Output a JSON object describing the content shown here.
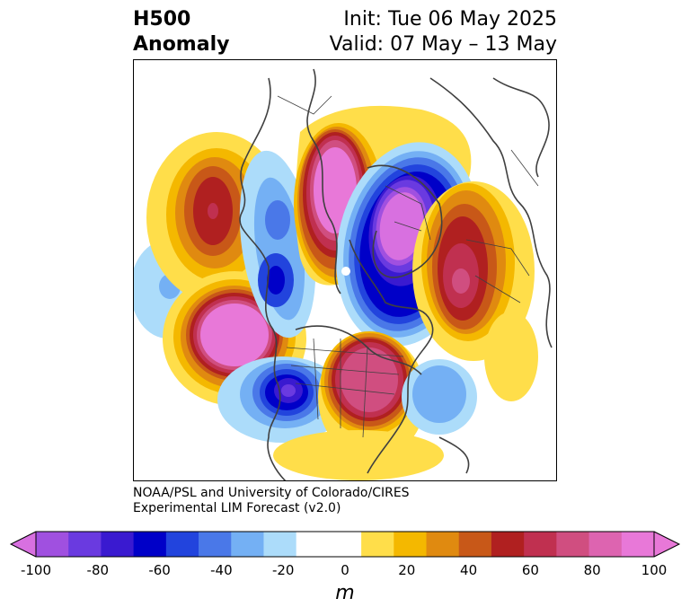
{
  "title": {
    "left_line1": "H500",
    "left_line2": "Anomaly",
    "right_line1": "Init: Tue 06 May 2025",
    "right_line2": "Valid: 07 May – 13 May"
  },
  "credit": {
    "line1": "NOAA/PSL and University of Colorado/CIRES",
    "line2": "Experimental LIM Forecast (v2.0)"
  },
  "colorbar": {
    "unit": "m",
    "levels": [
      -100,
      -90,
      -80,
      -70,
      -60,
      -50,
      -40,
      -30,
      -20,
      -10,
      10,
      20,
      30,
      40,
      50,
      60,
      70,
      80,
      90,
      100
    ],
    "colors": [
      "#a050e0",
      "#6a3ae0",
      "#3a1ad0",
      "#0000c8",
      "#2244dd",
      "#4a78e8",
      "#74b0f4",
      "#acdcfa",
      "#ffffff",
      "#ffffff",
      "#ffde4a",
      "#f4b800",
      "#e08a10",
      "#c85818",
      "#b02020",
      "#c03050",
      "#d04e80",
      "#dd64b0",
      "#e878d8"
    ],
    "extend_low_color": "#d870e0",
    "extend_high_color": "#e878d8",
    "tick_labels": [
      "-100",
      "-80",
      "-60",
      "-40",
      "-20",
      "0",
      "20",
      "40",
      "60",
      "80",
      "100"
    ]
  }
}
